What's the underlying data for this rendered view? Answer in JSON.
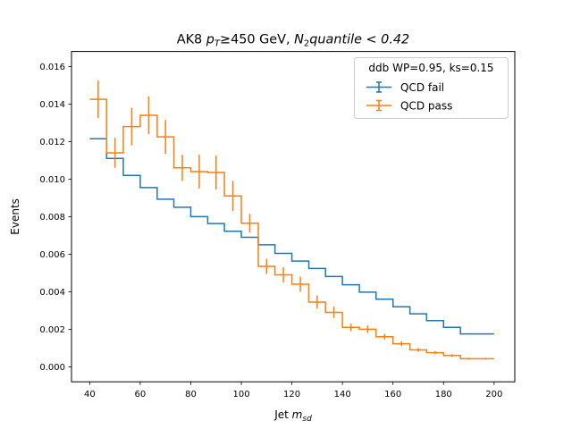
{
  "chart_data": {
    "type": "line",
    "title_prefix": "AK8 ",
    "title_pt_main": "p",
    "title_pt_sub": "T",
    "title_mid": "≥450 GeV, ",
    "title_n2_main": "N",
    "title_n2_sub": "2",
    "title_suffix": "quantile < 0.42",
    "xlabel_main": "Jet ",
    "xlabel_italic": "m",
    "xlabel_sub": "sd",
    "ylabel": "Events",
    "xlim": [
      32.8,
      208.2
    ],
    "ylim": [
      -0.0008,
      0.0168
    ],
    "xticks": [
      40,
      60,
      80,
      100,
      120,
      140,
      160,
      180,
      200
    ],
    "xtick_labels": [
      "40",
      "60",
      "80",
      "100",
      "120",
      "140",
      "160",
      "180",
      "200"
    ],
    "yticks": [
      0.0,
      0.002,
      0.004,
      0.006,
      0.008,
      0.01,
      0.012,
      0.014,
      0.016
    ],
    "ytick_labels": [
      "0.000",
      "0.002",
      "0.004",
      "0.006",
      "0.008",
      "0.010",
      "0.012",
      "0.014",
      "0.016"
    ],
    "bin_edges": [
      40,
      46.7,
      53.3,
      60,
      66.7,
      73.3,
      80,
      86.7,
      93.3,
      100,
      106.7,
      113.3,
      120,
      126.7,
      133.3,
      140,
      146.7,
      153.3,
      160,
      166.7,
      173.3,
      180,
      186.7,
      193.3,
      200
    ],
    "legend_title": "ddb WP=0.95, ks=0.15",
    "legend_position": "upper right",
    "series": [
      {
        "name": "QCD fail",
        "color": "#1f77b4",
        "values": [
          0.01215,
          0.0111,
          0.0102,
          0.00955,
          0.00893,
          0.0085,
          0.008,
          0.00763,
          0.00722,
          0.0069,
          0.0065,
          0.00604,
          0.00563,
          0.00524,
          0.00481,
          0.00437,
          0.00398,
          0.0036,
          0.0032,
          0.00282,
          0.00246,
          0.0021,
          0.00175,
          0.00175
        ],
        "errors": [
          5e-05,
          5e-05,
          5e-05,
          4e-05,
          4e-05,
          4e-05,
          4e-05,
          4e-05,
          4e-05,
          4e-05,
          4e-05,
          4e-05,
          4e-05,
          3e-05,
          3e-05,
          3e-05,
          3e-05,
          3e-05,
          3e-05,
          3e-05,
          3e-05,
          3e-05,
          3e-05,
          3e-05
        ]
      },
      {
        "name": "QCD pass",
        "color": "#ff7f0e",
        "values": [
          0.01425,
          0.0114,
          0.0128,
          0.0134,
          0.01225,
          0.0106,
          0.0104,
          0.01035,
          0.0091,
          0.00765,
          0.00535,
          0.0049,
          0.0044,
          0.00345,
          0.0029,
          0.0021,
          0.002,
          0.0016,
          0.00123,
          0.0009,
          0.00075,
          0.0006,
          0.00043,
          0.00043
        ],
        "errors": [
          0.001,
          0.0008,
          0.001,
          0.001,
          0.0009,
          0.0007,
          0.0009,
          0.0009,
          0.0008,
          0.0005,
          0.0004,
          0.0004,
          0.0004,
          0.00035,
          0.0003,
          0.0002,
          0.0002,
          0.00015,
          0.00012,
          0.0001,
          8e-05,
          7e-05,
          5e-05,
          5e-05
        ]
      }
    ]
  }
}
